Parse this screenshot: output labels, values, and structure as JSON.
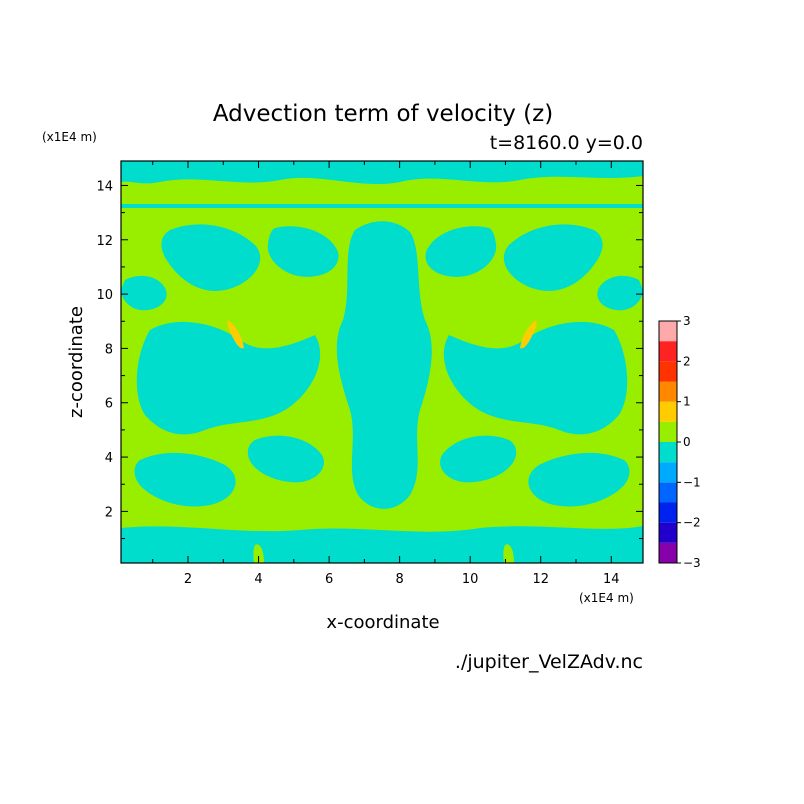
{
  "chart_data": {
    "type": "heatmap",
    "title": "Advection term of velocity (z)",
    "subtitle": "t=8160.0 y=0.0",
    "xlabel": "x-coordinate",
    "ylabel": "z-coordinate",
    "x_unit": "(x1E4 m)",
    "y_unit": "(x1E4 m)",
    "xlim": [
      0.1,
      14.9
    ],
    "ylim": [
      0.1,
      14.9
    ],
    "x_ticks": [
      2,
      4,
      6,
      8,
      10,
      12,
      14
    ],
    "y_ticks": [
      2,
      4,
      6,
      8,
      10,
      12,
      14
    ],
    "source_file": "./jupiter_VelZAdv.nc",
    "colorbar": {
      "levels": [
        -3,
        -2.5,
        -2,
        -1.5,
        -1,
        -0.5,
        0,
        0.5,
        1,
        1.5,
        2,
        2.5,
        3
      ],
      "tick_labels": [
        "-3",
        "-2",
        "-1",
        "0",
        "1",
        "2",
        "3"
      ],
      "colors": [
        "#8800aa",
        "#2200cc",
        "#0022ee",
        "#0066ff",
        "#00aaff",
        "#00ddcc",
        "#99ee00",
        "#ffcc00",
        "#ff8800",
        "#ff3300",
        "#ff2222",
        "#ffaaaa"
      ]
    },
    "grid": false
  }
}
